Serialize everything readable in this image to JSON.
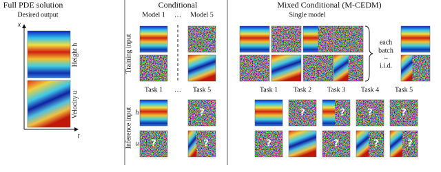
{
  "left_panel": {
    "title": "Full PDE solution",
    "subtitle": "Desired output",
    "axis_x": "x",
    "axis_t": "t",
    "label_height": "Height h",
    "label_velocity": "Velocity u"
  },
  "middle_panel": {
    "title": "Conditional",
    "model_labels": [
      "Model 1",
      "…",
      "Model 5"
    ],
    "task_labels": [
      "Task 1",
      "…",
      "Task 5"
    ],
    "row_labels": [
      "h",
      "u"
    ]
  },
  "right_panel": {
    "title": "Mixed Conditional (M-CEDM)",
    "subtitle": "Single model",
    "batch_note": [
      "each",
      "batch"
    ],
    "tilde": "~",
    "iid": "i.i.d.",
    "task_labels": [
      "Task 1",
      "Task 2",
      "Task 3",
      "Task 4",
      "Task 5"
    ]
  },
  "row_labels": {
    "training": "Training input",
    "inference": "Inference input"
  },
  "unknown_marker": "?"
}
